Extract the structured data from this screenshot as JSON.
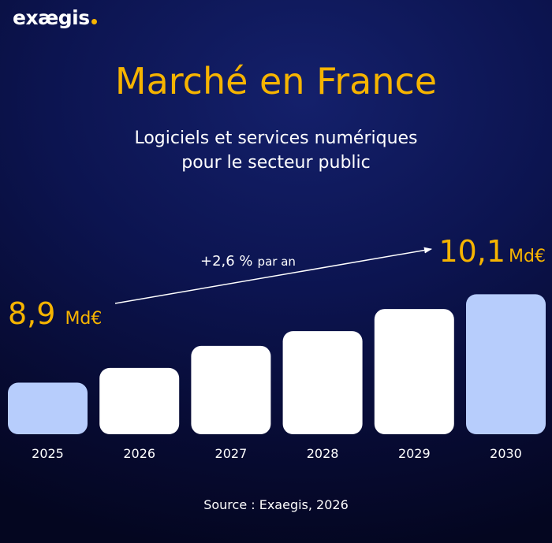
{
  "logo": {
    "text": "exægis"
  },
  "header": {
    "title": "Marché en France",
    "subtitle_line1": "Logiciels et services numériques",
    "subtitle_line2": "pour le secteur public"
  },
  "chart_data": {
    "type": "bar",
    "categories": [
      "2025",
      "2026",
      "2027",
      "2028",
      "2029",
      "2030"
    ],
    "values": [
      8.9,
      9.1,
      9.4,
      9.6,
      9.9,
      10.1
    ],
    "title": "Marché en France",
    "xlabel": "",
    "ylabel": "",
    "unit": "Md€",
    "ylim": [
      8.2,
      10.35
    ],
    "grid": false,
    "legend": "none",
    "value_labels": [
      {
        "category": "2025",
        "number": "8,9",
        "unit": "Md€"
      },
      {
        "category": "2030",
        "number": "10,1",
        "unit": "Md€"
      }
    ],
    "annotation": {
      "main": "+2,6 %",
      "suffix": "par an"
    },
    "colors": {
      "highlight_bar": "#b7cdfc",
      "bar": "#ffffff",
      "accent": "#f6b400"
    }
  },
  "footer": {
    "source": "Source : Exaegis, 2026"
  }
}
